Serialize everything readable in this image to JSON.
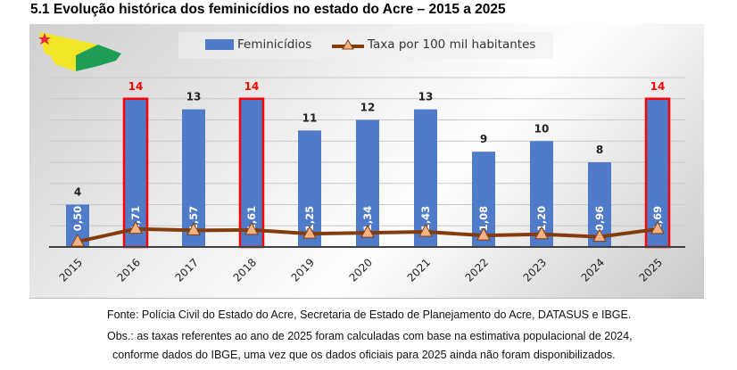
{
  "title": "5.1 Evolução histórica dos feminicídios no estado do Acre – 2015 a 2025",
  "chart_data": {
    "type": "bar",
    "title": "",
    "categories": [
      "2015",
      "2016",
      "2017",
      "2018",
      "2019",
      "2020",
      "2021",
      "2022",
      "2023",
      "2024",
      "2025"
    ],
    "series": [
      {
        "name": "Feminicídios",
        "type": "bar",
        "values": [
          4,
          14,
          13,
          14,
          11,
          12,
          13,
          9,
          10,
          8,
          14
        ],
        "color": "#4f7bc8"
      },
      {
        "name": "Taxa por 100 mil habitantes",
        "type": "line",
        "values": [
          0.5,
          1.71,
          1.57,
          1.61,
          1.25,
          1.34,
          1.43,
          1.08,
          1.2,
          0.96,
          1.69
        ],
        "labels": [
          "0,50",
          "1,71",
          "1,57",
          "1,61",
          "1,25",
          "1,34",
          "1,43",
          "1,08",
          "1,20",
          "0,96",
          "1,69"
        ],
        "color": "#843c0c",
        "marker_color": "#f4b183"
      }
    ],
    "highlighted_years": [
      "2016",
      "2018",
      "2025"
    ],
    "highlight_color": "#ff0000",
    "ylim": [
      0,
      16
    ],
    "grid": true,
    "legend": "top"
  },
  "footer": {
    "source": "Fonte: Polícia Civil do Estado do Acre, Secretaria de Estado de Planejamento do Acre, DATASUS e IBGE.",
    "note1": "Obs.: as taxas referentes ao ano de 2025 foram calculadas com base na estimativa populacional de 2024,",
    "note2": "conforme dados do IBGE, uma vez que os dados oficiais para 2025 ainda não foram disponibilizados."
  }
}
